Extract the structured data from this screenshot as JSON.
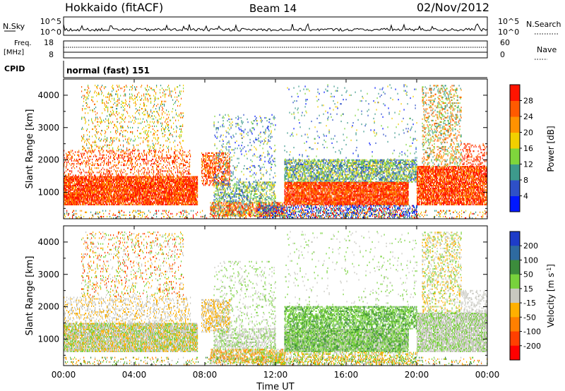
{
  "header": {
    "station": "Hokkaido (fitACF)",
    "beam": "Beam 14",
    "date": "02/Nov/2012"
  },
  "status_panels": {
    "nsky_label": "N.Sky",
    "nsky_ticks": [
      "10^5",
      "10^0"
    ],
    "nsearch_label": "N.Search",
    "freq_label_line1": "Freq.",
    "freq_label_line2": "[MHz]",
    "freq_ticks": [
      "18",
      "8"
    ],
    "nave_label": "Nave",
    "nave_ticks": [
      "60",
      "0"
    ],
    "cpid_label": "CPID",
    "cpid_value": "normal (fast) 151"
  },
  "chart_data": [
    {
      "type": "heatmap",
      "name": "Power",
      "ylabel": "Slant Range [km]",
      "xlabel": "Time UT",
      "x_ticks": [
        "00:00",
        "04:00",
        "08:00",
        "12:00",
        "16:00",
        "20:00",
        "00:00"
      ],
      "y_ticks": [
        "1000",
        "2000",
        "3000",
        "4000"
      ],
      "ylim": [
        180,
        4500
      ],
      "colorbar": {
        "label": "Power [dB]",
        "ticks": [
          "4",
          "8",
          "12",
          "16",
          "20",
          "24",
          "28"
        ],
        "colors": [
          "#0018ff",
          "#2e50c8",
          "#3d9a8c",
          "#7fd63c",
          "#f2cf00",
          "#ff9200",
          "#ff5a00",
          "#ff1400"
        ]
      }
    },
    {
      "type": "heatmap",
      "name": "Velocity",
      "ylabel": "Slant Range [km]",
      "xlabel": "Time UT",
      "x_ticks": [
        "00:00",
        "04:00",
        "08:00",
        "12:00",
        "16:00",
        "20:00",
        "00:00"
      ],
      "y_ticks": [
        "1000",
        "2000",
        "3000",
        "4000"
      ],
      "ylim": [
        180,
        4500
      ],
      "colorbar": {
        "label": "Velocity [m s^-1]",
        "label_main": "Velocity [m s",
        "label_sup": "-1",
        "label_end": "]",
        "ticks": [
          "200",
          "100",
          "50",
          "15",
          "-15",
          "-50",
          "-100",
          "-200"
        ],
        "colors": [
          "#1e3cc8",
          "#2e6aa0",
          "#3c8c3c",
          "#78d23c",
          "#c8c8c0",
          "#ffb000",
          "#ff8000",
          "#ff4000",
          "#ff0000"
        ]
      }
    }
  ],
  "x_axis": {
    "label": "Time UT",
    "ticks": [
      "00:00",
      "04:00",
      "08:00",
      "12:00",
      "16:00",
      "20:00",
      "00:00"
    ]
  }
}
